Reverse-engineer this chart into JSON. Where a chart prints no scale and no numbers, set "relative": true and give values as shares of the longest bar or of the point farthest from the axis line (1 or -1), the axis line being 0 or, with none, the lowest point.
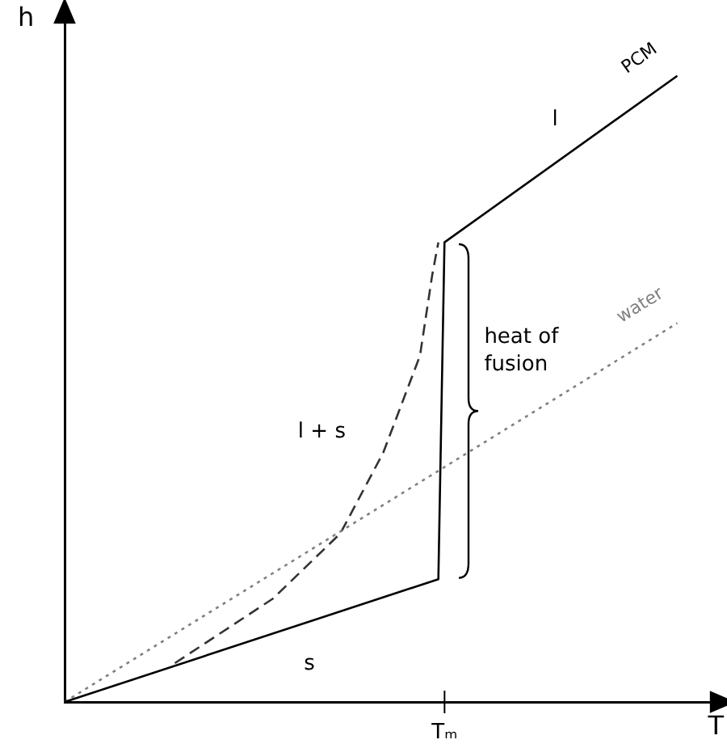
{
  "chart_data": {
    "type": "line",
    "relative": true,
    "xlabel": "T",
    "ylabel": "h",
    "legend": false,
    "marker": "none",
    "grid": false,
    "categories": [
      null,
      null,
      null,
      null,
      null,
      null,
      null,
      null,
      null,
      null,
      null,
      null,
      null,
      null,
      null,
      null,
      null,
      null,
      null,
      null,
      null,
      null,
      null,
      null,
      null,
      null,
      null,
      null,
      null,
      null,
      null,
      null,
      null,
      null,
      null,
      null,
      null,
      null,
      null,
      null,
      null,
      null,
      null,
      null,
      null,
      null,
      null,
      null,
      null,
      null,
      null,
      null,
      null,
      null,
      null,
      null,
      null,
      null,
      null,
      null,
      null,
      null,
      null,
      null,
      null,
      null,
      null,
      null,
      null,
      null,
      null,
      null,
      null,
      null,
      null,
      null,
      null,
      null,
      null,
      null,
      null,
      null,
      null,
      null,
      null,
      null,
      null,
      null,
      null,
      null,
      null,
      null,
      null,
      null,
      null,
      null,
      null,
      null,
      null,
      null,
      null,
      null,
      null,
      null,
      null,
      null,
      null
    ],
    "series": [
      {
        "name": "PCM",
        "color": "#000000",
        "line_style": "solid",
        "values": [
          0,
          null,
          null,
          null,
          null,
          null,
          null,
          null,
          null,
          null,
          null,
          null,
          null,
          null,
          null,
          null,
          null,
          null,
          null,
          null,
          null,
          null,
          null,
          null,
          null,
          null,
          null,
          null,
          null,
          null,
          null,
          null,
          null,
          null,
          null,
          null,
          null,
          null,
          null,
          null,
          null,
          null,
          null,
          null,
          null,
          null,
          null,
          null,
          null,
          null,
          null,
          null,
          null,
          null,
          null,
          null,
          null,
          null,
          null,
          null,
          null,
          0.196,
          0.734,
          null,
          null,
          null,
          null,
          null,
          null,
          null,
          null,
          null,
          null,
          null,
          null,
          null,
          null,
          null,
          null,
          null,
          null,
          null,
          null,
          null,
          null,
          null,
          null,
          null,
          null,
          null,
          null,
          null,
          null,
          null,
          null,
          null,
          null,
          null,
          null,
          null,
          1,
          null,
          null,
          null,
          null,
          null,
          null
        ]
      },
      {
        "name": "water",
        "color": "#808080",
        "line_style": "dotted",
        "values": [
          0,
          null,
          null,
          null,
          null,
          null,
          null,
          null,
          null,
          null,
          null,
          null,
          null,
          null,
          null,
          null,
          null,
          null,
          null,
          null,
          null,
          null,
          null,
          null,
          null,
          null,
          null,
          null,
          null,
          null,
          null,
          null,
          null,
          null,
          null,
          null,
          null,
          null,
          null,
          null,
          null,
          null,
          null,
          null,
          null,
          null,
          null,
          null,
          null,
          null,
          null,
          null,
          null,
          null,
          null,
          null,
          null,
          null,
          null,
          null,
          null,
          null,
          null,
          null,
          null,
          null,
          null,
          null,
          null,
          null,
          null,
          null,
          null,
          null,
          null,
          null,
          null,
          null,
          null,
          null,
          null,
          null,
          null,
          null,
          null,
          null,
          null,
          null,
          null,
          null,
          null,
          null,
          null,
          null,
          null,
          null,
          null,
          null,
          null,
          null,
          0.605,
          null,
          null,
          null,
          null,
          null,
          null
        ]
      },
      {
        "color": "#333333",
        "line_style": "dashed",
        "values": [
          null,
          null,
          null,
          null,
          null,
          null,
          null,
          null,
          null,
          null,
          null,
          null,
          null,
          null,
          null,
          null,
          null,
          null,
          0.062,
          null,
          null,
          null,
          null,
          null,
          null,
          null,
          null,
          null,
          null,
          null,
          null,
          null,
          null,
          null,
          0.165,
          null,
          null,
          null,
          null,
          null,
          null,
          null,
          null,
          null,
          null,
          0.269,
          null,
          null,
          null,
          null,
          null,
          null,
          0.398,
          null,
          null,
          null,
          null,
          null,
          0.553,
          null,
          0.682,
          0.734,
          null,
          null,
          null,
          null,
          null,
          null,
          null,
          null,
          null,
          null,
          null,
          null,
          null,
          null,
          null,
          null,
          null,
          null,
          null,
          null,
          null,
          null,
          null,
          null,
          null,
          null,
          null,
          null,
          null,
          null,
          null,
          null,
          null,
          null,
          null,
          null,
          null,
          null,
          null,
          null,
          null,
          null,
          null,
          null,
          null
        ]
      }
    ],
    "annotations": [
      "l",
      "s",
      "l + s",
      "heat of fusion",
      "Tₘ"
    ]
  }
}
